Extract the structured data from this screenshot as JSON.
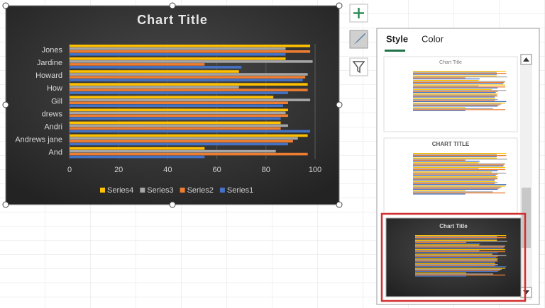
{
  "chart_data": {
    "type": "bar",
    "orientation": "horizontal",
    "title": "Chart Title",
    "categories": [
      "Jones",
      "Jardine",
      "Howard",
      "How",
      "Gill",
      "drews",
      "Andri",
      "Andrews jane",
      "And"
    ],
    "series": [
      {
        "name": "Series4",
        "color": "#ffc000",
        "values": [
          98,
          88,
          69,
          97,
          83,
          89,
          86,
          97,
          55
        ]
      },
      {
        "name": "Series3",
        "color": "#a5a5a5",
        "values": [
          88,
          99,
          97,
          69,
          98,
          88,
          89,
          93,
          84
        ]
      },
      {
        "name": "Series2",
        "color": "#ed7d31",
        "values": [
          98,
          55,
          96,
          97,
          89,
          89,
          86,
          91,
          97
        ]
      },
      {
        "name": "Series1",
        "color": "#4472c4",
        "values": [
          88,
          70,
          95,
          89,
          87,
          86,
          98,
          89,
          55
        ]
      }
    ],
    "xlim": [
      0,
      100
    ],
    "xticks": [
      0,
      20,
      40,
      60,
      80,
      100
    ],
    "grid": true,
    "legend": "bottom"
  },
  "panel": {
    "tabs": [
      "Style",
      "Color"
    ],
    "thumbnails": [
      "Chart Title",
      "CHART TITLE",
      "Chart Title"
    ]
  }
}
